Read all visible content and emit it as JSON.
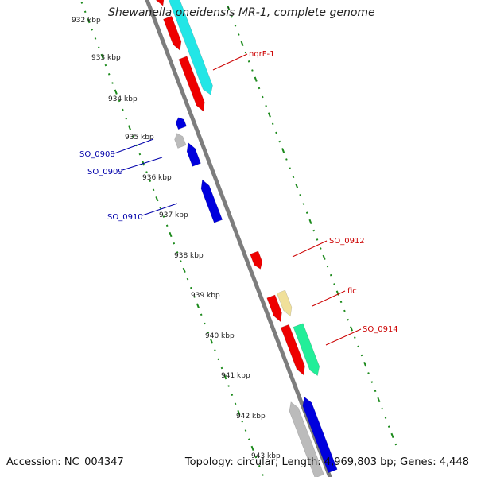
{
  "title": "Shewanella oneidensis MR-1, complete genome",
  "footer": {
    "accession": "Accession: NC_004347",
    "stats": "Topology: circular; Length: 4,969,803 bp; Genes: 4,448"
  },
  "colors": {
    "background": "#ffffff",
    "backbone": "#7d7d7d",
    "forward_tick_dots": "#1c8a1c",
    "red_gene": "#ee0000",
    "blue_gene": "#0000dd",
    "gray_gene": "#bbbbbb",
    "cyan_gene": "#22e6e6",
    "yellow_gene": "#f0e09a",
    "green_gene": "#22ee99",
    "label_red": "#cc0000",
    "label_blue": "#0000aa"
  },
  "ruler_labels": [
    "932 kbp",
    "933 kbp",
    "934 kbp",
    "935 kbp",
    "936 kbp",
    "937 kbp",
    "938 kbp",
    "939 kbp",
    "940 kbp",
    "941 kbp",
    "942 kbp",
    "943 kbp"
  ],
  "gene_labels": [
    {
      "text": "nqrF-1",
      "color_key": "label_red"
    },
    {
      "text": "SO_0908",
      "color_key": "label_blue"
    },
    {
      "text": "SO_0909",
      "color_key": "label_blue"
    },
    {
      "text": "SO_0910",
      "color_key": "label_blue"
    },
    {
      "text": "SO_0912",
      "color_key": "label_red"
    },
    {
      "text": "fic",
      "color_key": "label_red"
    },
    {
      "text": "SO_0914",
      "color_key": "label_red"
    }
  ],
  "genes": [
    {
      "color_key": "red_gene",
      "strand": "forward"
    },
    {
      "color_key": "red_gene",
      "strand": "forward"
    },
    {
      "color_key": "red_gene",
      "strand": "forward"
    },
    {
      "color_key": "cyan_gene",
      "strand": "forward"
    },
    {
      "color_key": "gray_gene",
      "strand": "reverse"
    },
    {
      "color_key": "blue_gene",
      "strand": "reverse"
    },
    {
      "color_key": "blue_gene",
      "strand": "reverse"
    },
    {
      "color_key": "blue_gene",
      "strand": "reverse"
    },
    {
      "color_key": "red_gene",
      "strand": "forward"
    },
    {
      "color_key": "red_gene",
      "strand": "forward"
    },
    {
      "color_key": "yellow_gene",
      "strand": "forward"
    },
    {
      "color_key": "red_gene",
      "strand": "forward"
    },
    {
      "color_key": "green_gene",
      "strand": "forward"
    },
    {
      "color_key": "gray_gene",
      "strand": "reverse"
    },
    {
      "color_key": "blue_gene",
      "strand": "reverse"
    }
  ]
}
